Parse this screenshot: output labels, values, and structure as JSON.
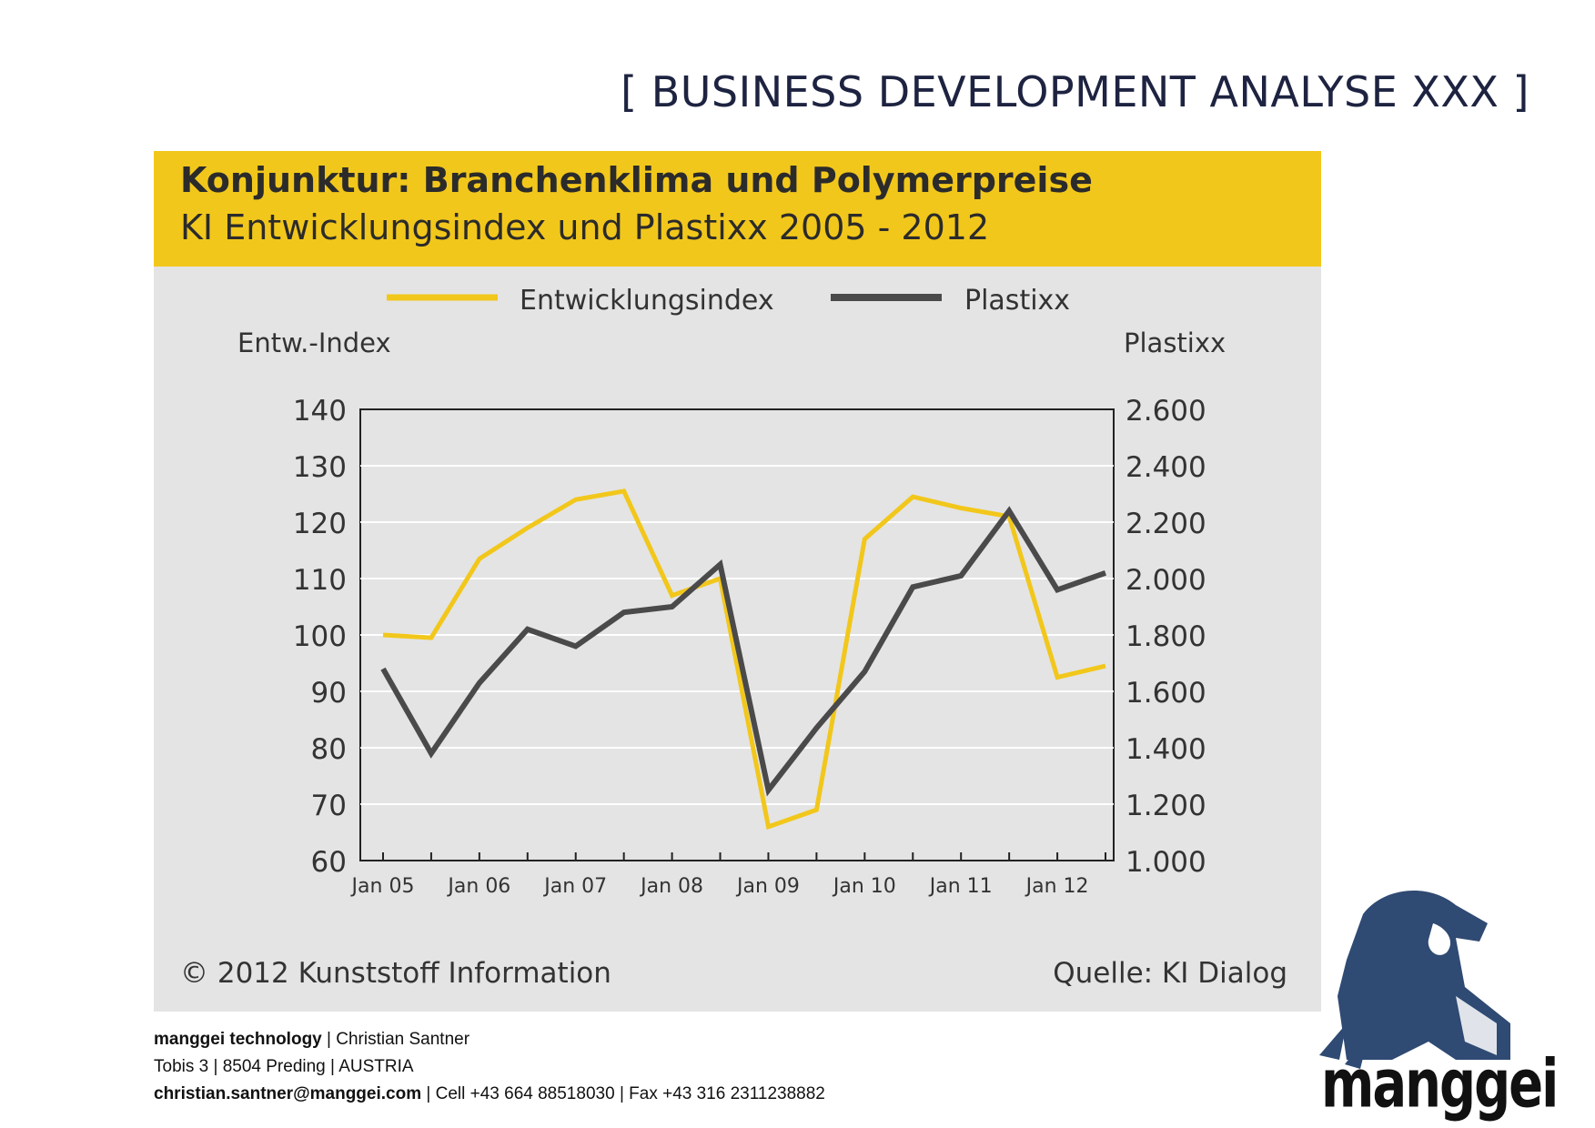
{
  "slide_title": "[ BUSINESS DEVELOPMENT ANALYSE XXX ]",
  "panel": {
    "title": "Konjunktur: Branchenklima und Polymerpreise",
    "subtitle": "KI Entwicklungsindex und Plastixx 2005 - 2012",
    "copyright": "© 2012 Kunststoff Information",
    "source": "Quelle: KI Dialog",
    "header_color": "#f2c71b",
    "background_color": "#e4e4e4"
  },
  "chart_data": {
    "type": "line",
    "title": "Konjunktur: Branchenklima und Polymerpreise",
    "subtitle": "KI Entwicklungsindex und Plastixx 2005 - 2012",
    "ylabel_left": "Entw.-Index",
    "ylabel_right": "Plastixx",
    "ylim_left": [
      60,
      140
    ],
    "ylim_right": [
      1000,
      2600
    ],
    "yticks_left": [
      "140",
      "130",
      "120",
      "110",
      "100",
      "90",
      "80",
      "70",
      "60"
    ],
    "yticks_right": [
      "2.600",
      "2.400",
      "2.200",
      "2.000",
      "1.800",
      "1.600",
      "1.400",
      "1.200",
      "1.000"
    ],
    "x_tick_labels": [
      "Jan 05",
      "Jan 06",
      "Jan 07",
      "Jan 08",
      "Jan 09",
      "Jan 10",
      "Jan 11",
      "Jan 12"
    ],
    "x_period_count": 16,
    "grid": true,
    "legend_position": "top",
    "series": [
      {
        "name": "Entwicklungsindex",
        "axis": "left",
        "color": "#f2c71b",
        "values": [
          100,
          99.5,
          113.5,
          119,
          124,
          125.5,
          107,
          110,
          66,
          69,
          117,
          124.5,
          122.5,
          121,
          92.5,
          94.5
        ]
      },
      {
        "name": "Plastixx",
        "axis": "right",
        "color": "#4a4a4a",
        "values": [
          1680,
          1380,
          1630,
          1820,
          1760,
          1880,
          1900,
          2050,
          1250,
          1470,
          1670,
          1970,
          2010,
          2240,
          1960,
          2020
        ]
      }
    ]
  },
  "footer": {
    "company": "manggei technology",
    "person": "Christian Santner",
    "street": "Tobis 3",
    "city": "8504 Preding",
    "country": "AUSTRIA",
    "email": "christian.santner@manggei.com",
    "cell": "Cell +43 664 88518030",
    "fax": "Fax +43 316 2311238882",
    "separator": "|"
  },
  "logo": {
    "wordmark": "manggei",
    "icon": "beaver-mascot-icon",
    "color": "#2f4a73"
  }
}
